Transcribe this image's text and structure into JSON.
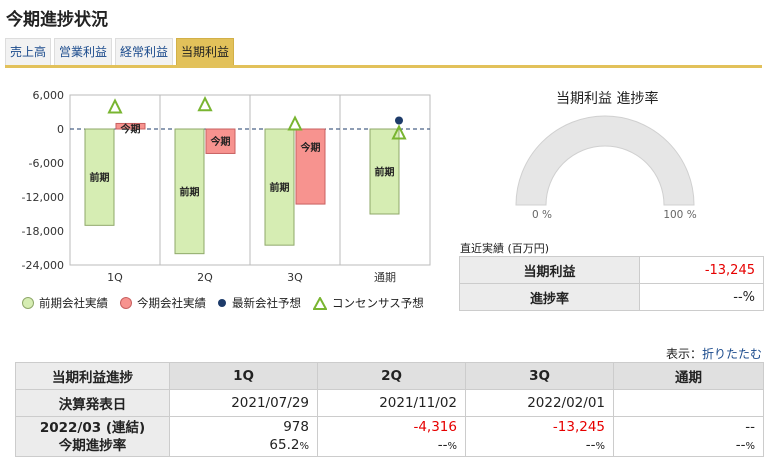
{
  "page_title": "今期進捗状況",
  "tabs": [
    "売上高",
    "営業利益",
    "経常利益",
    "当期利益"
  ],
  "active_tab": 3,
  "chart_data": {
    "type": "bar",
    "categories": [
      "1Q",
      "2Q",
      "3Q",
      "通期"
    ],
    "ylim": [
      -24000,
      6000
    ],
    "yticks": [
      "6,000",
      "0",
      "-6,000",
      "-12,000",
      "-18,000",
      "-24,000"
    ],
    "ytick_values": [
      6000,
      0,
      -6000,
      -12000,
      -18000,
      -24000
    ],
    "series": [
      {
        "name": "前期会社実績",
        "color": "#d6edb3",
        "stroke": "#8fa86a",
        "label": "前期",
        "values": [
          -17000,
          -22000,
          -20500,
          -15000
        ]
      },
      {
        "name": "今期会社実績",
        "color": "#f7938f",
        "stroke": "#c86060",
        "label": "今期",
        "values": [
          978,
          -4316,
          -13245,
          null
        ]
      },
      {
        "name": "最新会社予想",
        "color": "#1d3b6a",
        "values": [
          null,
          null,
          null,
          1500
        ]
      },
      {
        "name": "コンセンサス予想",
        "color": "#79b531",
        "values": [
          3800,
          4200,
          800,
          -800
        ]
      }
    ],
    "legend_position": "bottom"
  },
  "gauge": {
    "title": "当期利益 進捗率",
    "min_label": "0 %",
    "max_label": "100 %",
    "progress": 0
  },
  "recent": {
    "label": "直近実績 (百万円)",
    "rows": [
      {
        "label": "当期利益",
        "value": "-13,245"
      },
      {
        "label": "進捗率",
        "value": "--%"
      }
    ]
  },
  "display": {
    "label": "表示：",
    "link": "折りたたむ"
  },
  "table": {
    "headers": [
      "当期利益進捗",
      "1Q",
      "2Q",
      "3Q",
      "通期"
    ],
    "announce_label": "決算発表日",
    "announce_dates": [
      "2021/07/29",
      "2021/11/02",
      "2022/02/01",
      ""
    ],
    "period_label": "2022/03 (連結)",
    "progress_label": "今期進捗率",
    "values": [
      "978",
      "-4,316",
      "-13,245",
      "--"
    ],
    "progress_values": [
      "65.2",
      "--",
      "--",
      "--"
    ],
    "pct": "%"
  }
}
